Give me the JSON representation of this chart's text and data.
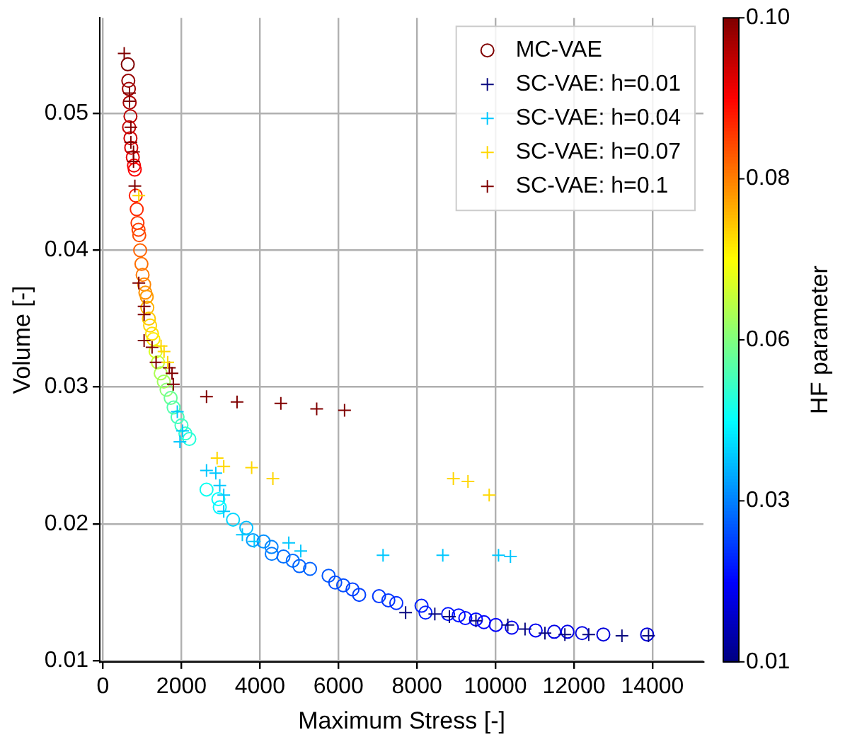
{
  "chart_data": {
    "type": "scatter",
    "xlabel": "Maximum Stress [-]",
    "ylabel": "Volume [-]",
    "clabel": "HF parameter",
    "xlim": [
      -80,
      15300
    ],
    "ylim": [
      0.0099,
      0.057
    ],
    "xticks": [
      0,
      2000,
      4000,
      6000,
      8000,
      10000,
      12000,
      14000
    ],
    "yticks": [
      0.01,
      0.02,
      0.03,
      0.04,
      0.05
    ],
    "clim": [
      0.01,
      0.1
    ],
    "cticks": [
      0.01,
      {
        "value": 0.0325,
        "label": "0.03"
      },
      {
        "value": 0.055,
        "label": "0.06"
      },
      {
        "value": 0.0775,
        "label": "0.08"
      },
      {
        "value": 0.1,
        "label": "0.10"
      }
    ],
    "grid": true,
    "legend": "top right",
    "series": [
      {
        "name": "MC-VAE",
        "marker": "circle",
        "x": [
          632,
          645,
          660,
          680,
          700,
          665,
          700,
          720,
          760,
          790,
          810,
          835,
          860,
          880,
          905,
          925,
          947,
          980,
          1010,
          1050,
          1080,
          1116,
          1130,
          1170,
          1200,
          1250,
          1285,
          1340,
          1400,
          1470,
          1550,
          1620,
          1725,
          1800,
          1900,
          2000,
          2100,
          2200,
          2638,
          2940,
          2976,
          3314,
          3652,
          3821,
          4092,
          4295,
          4300,
          4600,
          4836,
          5005,
          5276,
          5749,
          5918,
          6121,
          6358,
          6527,
          7034,
          7271,
          7474,
          8116,
          8218,
          8793,
          9063,
          9232,
          9503,
          9706,
          10010,
          10416,
          11025,
          11498,
          11836,
          12208,
          12749,
          13865
        ],
        "values": [
          0.0536,
          0.0524,
          0.0518,
          0.0508,
          0.0498,
          0.049,
          0.0482,
          0.0475,
          0.0468,
          0.0462,
          0.0459,
          0.044,
          0.043,
          0.042,
          0.0415,
          0.0411,
          0.04,
          0.039,
          0.0382,
          0.0375,
          0.0369,
          0.0366,
          0.0358,
          0.035,
          0.0345,
          0.0339,
          0.0335,
          0.0326,
          0.0318,
          0.031,
          0.0304,
          0.0298,
          0.0292,
          0.0285,
          0.0278,
          0.0272,
          0.0266,
          0.0262,
          0.0225,
          0.0218,
          0.0212,
          0.0203,
          0.0197,
          0.0188,
          0.0187,
          0.0183,
          0.0178,
          0.0176,
          0.0173,
          0.0169,
          0.0167,
          0.0162,
          0.0157,
          0.0155,
          0.0152,
          0.0148,
          0.0147,
          0.0144,
          0.0142,
          0.014,
          0.0135,
          0.0134,
          0.0133,
          0.0131,
          0.013,
          0.0128,
          0.0126,
          0.0124,
          0.0122,
          0.0121,
          0.0121,
          0.012,
          0.0119,
          0.0119
        ],
        "colors": [
          "#800000",
          "#960000",
          "#a10000",
          "#ad0000",
          "#b80000",
          "#c40000",
          "#cf0000",
          "#da0000",
          "#e60000",
          "#f10000",
          "#fc0000",
          "#ff1f00",
          "#ff2b00",
          "#ff3600",
          "#ff4100",
          "#ff4d00",
          "#ff6300",
          "#ff6f00",
          "#ff7a00",
          "#ff8500",
          "#ff9100",
          "#ff9c00",
          "#ffb300",
          "#ffc900",
          "#ffd500",
          "#ffe000",
          "#ffeb00",
          "#daff25",
          "#c4ff3c",
          "#adff52",
          "#a1ff5e",
          "#8bff74",
          "#69ff96",
          "#52ffad",
          "#47ffb8",
          "#3cffc4",
          "#30ffcf",
          "#25ffda",
          "#0efff1",
          "#03fffc",
          "#00f7ff",
          "#00d5ff",
          "#00beff",
          "#009cff",
          "#0091ff",
          "#0085ff",
          "#007aff",
          "#006fff",
          "#006fff",
          "#0063ff",
          "#0063ff",
          "#0058ff",
          "#004dff",
          "#004dff",
          "#0041ff",
          "#0041ff",
          "#0036ff",
          "#0036ff",
          "#002bff",
          "#001fff",
          "#001fff",
          "#0014ff",
          "#0014ff",
          "#0009ff",
          "#0009ff",
          "#0000fc",
          "#0000fc",
          "#0000f1",
          "#0000f1",
          "#0000e6",
          "#0000e6",
          "#0000e6",
          "#0000da",
          "#0000da"
        ]
      },
      {
        "name": "SC-VAE: h=0.01",
        "marker": "cross",
        "color": "#0a0a80",
        "x": [
          7711,
          8455,
          8827,
          9503,
          10315,
          10754,
          11261,
          11769,
          12377,
          13223,
          13900
        ],
        "values": [
          0.0135,
          0.0134,
          0.0132,
          0.0129,
          0.0126,
          0.0123,
          0.012,
          0.0119,
          0.0119,
          0.0118,
          0.0118
        ]
      },
      {
        "name": "SC-VAE: h=0.04",
        "marker": "cross",
        "color": "#00c8ff",
        "x": [
          1894,
          2029,
          1961,
          2638,
          2874,
          2976,
          3077,
          3077,
          3551,
          3855,
          4734,
          5039,
          7136,
          8658,
          10078,
          10382
        ],
        "values": [
          0.0282,
          0.0268,
          0.026,
          0.0239,
          0.0237,
          0.0228,
          0.0221,
          0.0209,
          0.0192,
          0.0187,
          0.0186,
          0.018,
          0.0177,
          0.0177,
          0.0177,
          0.0176
        ]
      },
      {
        "name": "SC-VAE: h=0.07",
        "marker": "cross",
        "color": "#ffd700",
        "x": [
          913,
          1480,
          1556,
          1650,
          2908,
          3077,
          3788,
          4329,
          8928,
          9300,
          9841
        ],
        "values": [
          0.044,
          0.033,
          0.0326,
          0.0318,
          0.0248,
          0.0242,
          0.0241,
          0.0233,
          0.0233,
          0.0231,
          0.0221
        ]
      },
      {
        "name": "SC-VAE: h=0.1",
        "marker": "cross",
        "color": "#800000",
        "x": [
          541,
          676,
          676,
          710,
          710,
          778,
          778,
          812,
          913,
          1048,
          1048,
          1048,
          1251,
          1353,
          1691,
          1759,
          1792,
          2638,
          3416,
          4532,
          5445,
          6155
        ],
        "values": [
          0.0544,
          0.0515,
          0.0509,
          0.049,
          0.0479,
          0.0472,
          0.0465,
          0.0447,
          0.0376,
          0.0359,
          0.0353,
          0.0334,
          0.0329,
          0.0318,
          0.0314,
          0.031,
          0.0302,
          0.0293,
          0.0289,
          0.0288,
          0.0284,
          0.0283
        ]
      }
    ]
  }
}
